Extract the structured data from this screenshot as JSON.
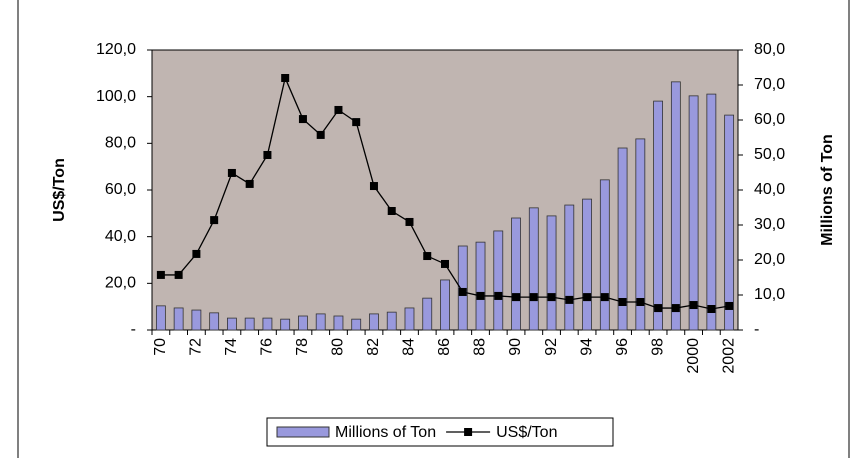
{
  "chart_data": {
    "type": "combo",
    "categories": [
      "70",
      null,
      "72",
      null,
      "74",
      null,
      "76",
      null,
      "78",
      null,
      "80",
      null,
      "82",
      null,
      "84",
      null,
      "86",
      null,
      "88",
      null,
      "90",
      null,
      "92",
      null,
      "94",
      null,
      "96",
      null,
      "98",
      null,
      "2000",
      null,
      "2002"
    ],
    "series": [
      {
        "name": "Millions of Ton",
        "type": "bar",
        "axis": "y2",
        "color": "#9999dd",
        "values": [
          6.9,
          6.3,
          5.7,
          4.9,
          3.4,
          3.4,
          3.4,
          3.1,
          4,
          4.6,
          4,
          3.1,
          4.6,
          5.1,
          6.3,
          9.1,
          14.3,
          24,
          25.1,
          28.3,
          32,
          34.9,
          32.6,
          35.7,
          37.4,
          42.9,
          52,
          54.6,
          65.4,
          70.9,
          66.9,
          67.4,
          61.4
        ]
      },
      {
        "name": "US$/Ton",
        "type": "line",
        "color": "#000000",
        "values": [
          23.6,
          23.6,
          32.6,
          47.1,
          67.3,
          62.6,
          75,
          108,
          90.4,
          83.6,
          94.3,
          89.1,
          61.7,
          51,
          46.3,
          31.7,
          28.3,
          16.3,
          14.6,
          14.6,
          14.1,
          14.1,
          14.1,
          12.9,
          14.1,
          14.1,
          12,
          12,
          9.4,
          9.4,
          10.7,
          9,
          10.3
        ]
      }
    ],
    "y_label": "US$/Ton",
    "y2_label": "Millions of Ton",
    "ylim": [
      0,
      120
    ],
    "yticks": [
      {
        "value": 0,
        "label": "-"
      },
      {
        "value": 20,
        "label": "20,0"
      },
      {
        "value": 40,
        "label": "40,0"
      },
      {
        "value": 60,
        "label": "60,0"
      },
      {
        "value": 80,
        "label": "80,0"
      },
      {
        "value": 100,
        "label": "100,0"
      },
      {
        "value": 120,
        "label": "120,0"
      }
    ],
    "y2lim": [
      0,
      80
    ],
    "y2ticks": [
      {
        "value": 0,
        "label": "-"
      },
      {
        "value": 10,
        "label": "10,0"
      },
      {
        "value": 20,
        "label": "20,0"
      },
      {
        "value": 30,
        "label": "30,0"
      },
      {
        "value": 40,
        "label": "40,0"
      },
      {
        "value": 50,
        "label": "50,0"
      },
      {
        "value": 60,
        "label": "60,0"
      },
      {
        "value": 70,
        "label": "70,0"
      },
      {
        "value": 80,
        "label": "80,0"
      }
    ],
    "plot_background": "#c0b5b1",
    "legend": "bottom"
  }
}
